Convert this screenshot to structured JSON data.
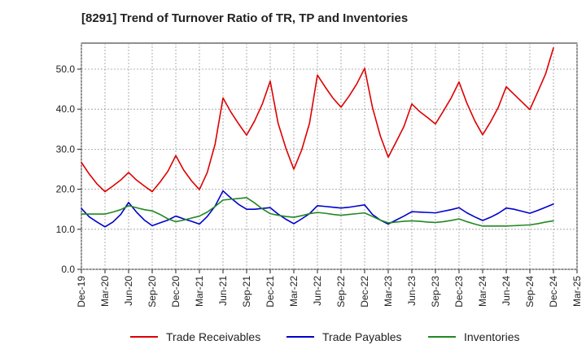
{
  "chart_data": {
    "type": "line",
    "title": "[8291]  Trend of Turnover Ratio of TR, TP and Inventories",
    "xlabel": "",
    "ylabel": "",
    "ylim": [
      0,
      56.5
    ],
    "yticks": [
      0,
      10,
      20,
      30,
      40,
      50
    ],
    "ytick_labels": [
      "0.0",
      "10.0",
      "20.0",
      "30.0",
      "40.0",
      "50.0"
    ],
    "x_dates": [
      "2019-12",
      "2020-01",
      "2020-02",
      "2020-03",
      "2020-04",
      "2020-05",
      "2020-06",
      "2020-07",
      "2020-08",
      "2020-09",
      "2020-10",
      "2020-11",
      "2020-12",
      "2021-01",
      "2021-02",
      "2021-03",
      "2021-04",
      "2021-05",
      "2021-06",
      "2021-07",
      "2021-08",
      "2021-09",
      "2021-10",
      "2021-11",
      "2021-12",
      "2022-01",
      "2022-02",
      "2022-03",
      "2022-04",
      "2022-05",
      "2022-06",
      "2022-07",
      "2022-08",
      "2022-09",
      "2022-10",
      "2022-11",
      "2022-12",
      "2023-01",
      "2023-02",
      "2023-03",
      "2023-04",
      "2023-05",
      "2023-06",
      "2023-07",
      "2023-08",
      "2023-09",
      "2023-10",
      "2023-11",
      "2023-12",
      "2024-01",
      "2024-02",
      "2024-03",
      "2024-04",
      "2024-05",
      "2024-06",
      "2024-07",
      "2024-08",
      "2024-09",
      "2024-10",
      "2024-11",
      "2024-12"
    ],
    "xticks": [
      "Dec-19",
      "Mar-20",
      "Jun-20",
      "Sep-20",
      "Dec-20",
      "Mar-21",
      "Jun-21",
      "Sep-21",
      "Dec-21",
      "Mar-22",
      "Jun-22",
      "Sep-22",
      "Dec-22",
      "Mar-23",
      "Jun-23",
      "Sep-23",
      "Dec-23",
      "Mar-24",
      "Jun-24",
      "Sep-24",
      "Dec-24",
      "Mar-25"
    ],
    "grid": true,
    "legend_position": "bottom",
    "series": [
      {
        "name": "Trade Receivables",
        "color": "#dd0000",
        "values": [
          26.7,
          23.8,
          21.3,
          19.4,
          20.8,
          22.3,
          24.2,
          22.3,
          20.8,
          19.4,
          21.8,
          24.5,
          28.4,
          24.8,
          22.1,
          19.9,
          24.2,
          31.3,
          42.8,
          39.3,
          36.3,
          33.5,
          37.0,
          41.3,
          47.0,
          36.5,
          30.2,
          25.0,
          29.8,
          36.5,
          48.5,
          45.5,
          42.7,
          40.5,
          43.2,
          46.3,
          50.2,
          40.4,
          33.3,
          28.0,
          31.8,
          35.7,
          41.3,
          39.4,
          37.9,
          36.3,
          39.5,
          42.8,
          46.8,
          41.5,
          37.1,
          33.6,
          36.8,
          40.5,
          45.6,
          43.7,
          41.8,
          39.9,
          44.3,
          48.8,
          55.3
        ]
      },
      {
        "name": "Trade Payables",
        "color": "#0000cc",
        "values": [
          15.2,
          13.1,
          11.8,
          10.6,
          11.8,
          13.7,
          16.7,
          14.3,
          12.3,
          10.9,
          11.6,
          12.3,
          13.3,
          12.6,
          12.0,
          11.3,
          13.2,
          15.8,
          19.6,
          17.8,
          16.2,
          15.0,
          15.0,
          15.2,
          15.4,
          13.8,
          12.5,
          11.4,
          12.6,
          13.9,
          15.9,
          15.7,
          15.5,
          15.3,
          15.5,
          15.8,
          16.1,
          13.7,
          12.3,
          11.3,
          12.3,
          13.3,
          14.4,
          14.3,
          14.2,
          14.1,
          14.5,
          14.9,
          15.4,
          14.1,
          13.1,
          12.2,
          13.0,
          14.0,
          15.3,
          15.0,
          14.5,
          14.0,
          14.7,
          15.5,
          16.3
        ]
      },
      {
        "name": "Inventories",
        "color": "#228822",
        "values": [
          13.8,
          13.8,
          13.8,
          13.8,
          14.3,
          14.9,
          15.9,
          15.4,
          14.9,
          14.6,
          13.7,
          12.6,
          11.9,
          12.3,
          12.8,
          13.3,
          14.3,
          15.7,
          17.3,
          17.5,
          17.7,
          17.9,
          16.6,
          15.1,
          13.9,
          13.5,
          13.2,
          13.0,
          13.4,
          13.9,
          14.2,
          14.0,
          13.7,
          13.5,
          13.7,
          13.9,
          14.1,
          13.2,
          12.3,
          11.6,
          11.8,
          12.0,
          12.1,
          12.0,
          11.8,
          11.7,
          11.9,
          12.2,
          12.6,
          11.9,
          11.3,
          10.8,
          10.8,
          10.8,
          10.8,
          10.9,
          11.0,
          11.1,
          11.4,
          11.8,
          12.1
        ]
      }
    ]
  }
}
